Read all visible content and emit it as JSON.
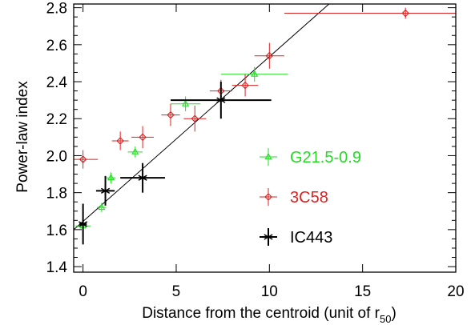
{
  "chart_data": {
    "type": "scatter",
    "xlabel": "Distance from the centroid (unit of r",
    "xlabel_subscript": "50",
    "xlabel_suffix": ")",
    "ylabel": "Power-law index",
    "xlim": [
      -0.5,
      20
    ],
    "ylim": [
      1.37,
      2.82
    ],
    "x_ticks": [
      0,
      5,
      10,
      15,
      20
    ],
    "x_tick_labels": [
      "0",
      "5",
      "10",
      "15",
      "20"
    ],
    "y_ticks": [
      1.4,
      1.6,
      1.8,
      2.0,
      2.2,
      2.4,
      2.6,
      2.8
    ],
    "y_tick_labels": [
      "1.4",
      "1.6",
      "1.8",
      "2.0",
      "2.2",
      "2.4",
      "2.6",
      "2.8"
    ],
    "legend_position": "center-right",
    "fit_line": {
      "x": [
        -0.5,
        13.2
      ],
      "y": [
        1.6,
        2.82
      ],
      "color": "#000000"
    },
    "series": [
      {
        "name": "G21.5-0.9",
        "color": "#22dd22",
        "marker": "triangle",
        "points": [
          {
            "x": 0.0,
            "y": 1.62,
            "xerr": 0.4,
            "yerr": 0.03
          },
          {
            "x": 1.0,
            "y": 1.72,
            "xerr": 0.25,
            "yerr": 0.025
          },
          {
            "x": 1.5,
            "y": 1.88,
            "xerr": 0.25,
            "yerr": 0.03
          },
          {
            "x": 2.8,
            "y": 2.02,
            "xerr": 0.4,
            "yerr": 0.03
          },
          {
            "x": 5.5,
            "y": 2.28,
            "xerr": 0.8,
            "yerr": 0.04
          },
          {
            "x": 9.2,
            "y": 2.44,
            "xerr": 1.8,
            "yerr": 0.04
          }
        ]
      },
      {
        "name": "3C58",
        "color": "#dd2222",
        "marker": "diamond",
        "points": [
          {
            "x": 0.0,
            "y": 1.98,
            "xerr": 0.8,
            "yerr": 0.05
          },
          {
            "x": 2.0,
            "y": 2.08,
            "xerr": 0.45,
            "yerr": 0.05
          },
          {
            "x": 3.2,
            "y": 2.1,
            "xerr": 0.6,
            "yerr": 0.06
          },
          {
            "x": 4.7,
            "y": 2.22,
            "xerr": 0.5,
            "yerr": 0.06
          },
          {
            "x": 6.0,
            "y": 2.2,
            "xerr": 0.6,
            "yerr": 0.07
          },
          {
            "x": 7.4,
            "y": 2.35,
            "xerr": 0.6,
            "yerr": 0.06
          },
          {
            "x": 8.7,
            "y": 2.38,
            "xerr": 0.7,
            "yerr": 0.06
          },
          {
            "x": 10.0,
            "y": 2.54,
            "xerr": 0.8,
            "yerr": 0.07
          },
          {
            "x": 17.3,
            "y": 2.77,
            "xerr": 6.5,
            "yerr": 0.03
          }
        ]
      },
      {
        "name": "IC443",
        "color": "#000000",
        "marker": "asterisk",
        "points": [
          {
            "x": 0.0,
            "y": 1.63,
            "xerr": 0.2,
            "yerr": 0.11
          },
          {
            "x": 1.2,
            "y": 1.81,
            "xerr": 0.5,
            "yerr": 0.08
          },
          {
            "x": 3.2,
            "y": 1.88,
            "xerr": 1.2,
            "yerr": 0.08
          },
          {
            "x": 7.4,
            "y": 2.3,
            "xerr": 2.7,
            "yerr": 0.1
          }
        ]
      }
    ]
  }
}
